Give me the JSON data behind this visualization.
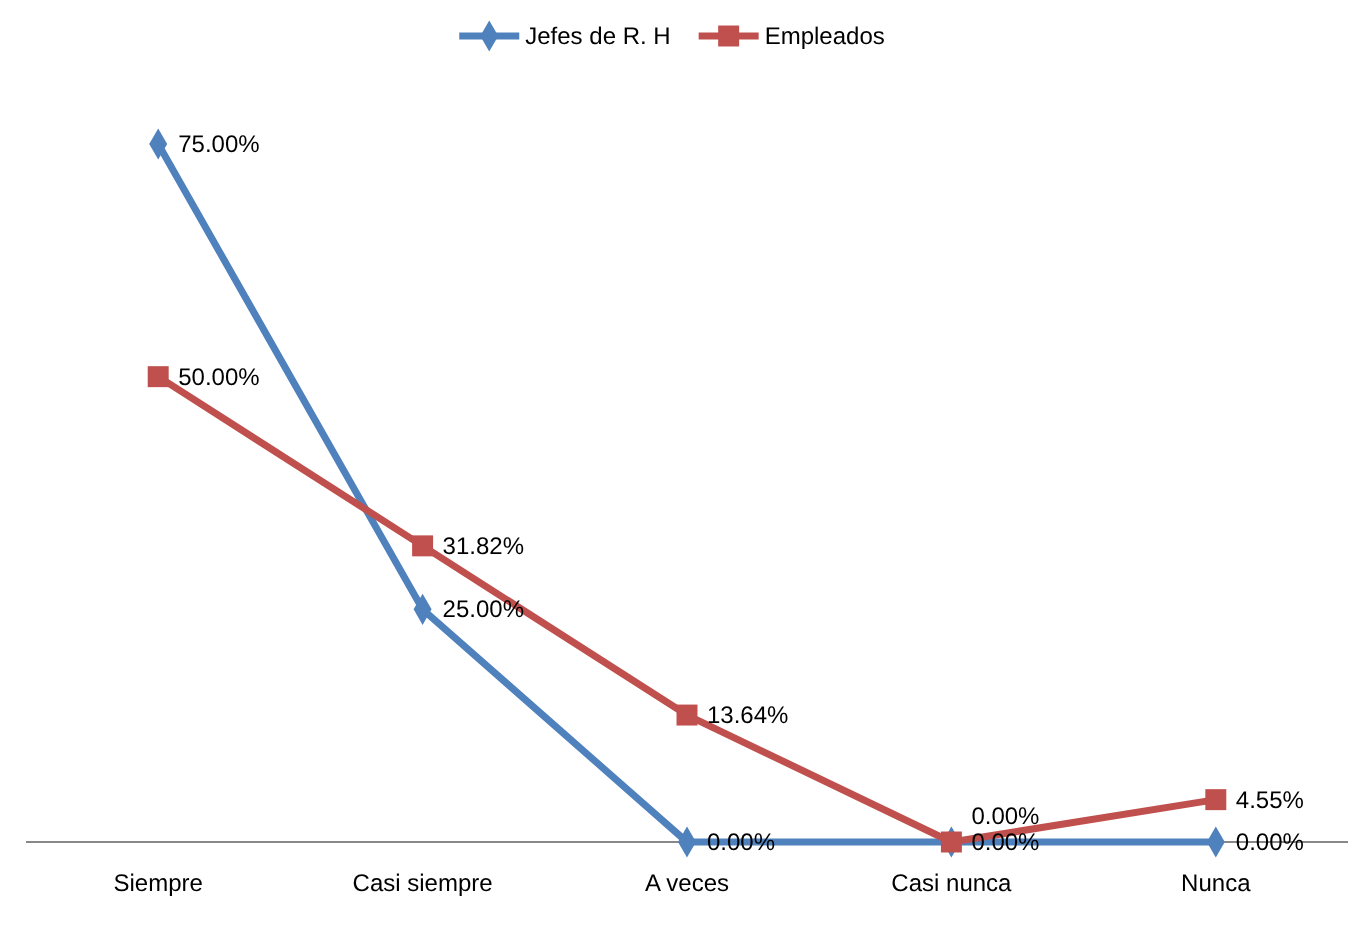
{
  "chart_data": {
    "type": "line",
    "categories": [
      "Siempre",
      "Casi siempre",
      "A veces",
      "Casi nunca",
      "Nunca"
    ],
    "series": [
      {
        "name": "Jefes de R. H",
        "color": "#4f81bd",
        "marker": "diamond",
        "values": [
          75,
          25,
          0,
          0,
          0
        ],
        "value_labels": [
          "75.00%",
          "25.00%",
          "0.00%",
          "0.00%",
          "0.00%"
        ]
      },
      {
        "name": "Empleados",
        "color": "#c0504d",
        "marker": "square",
        "values": [
          50,
          31.82,
          13.64,
          0,
          4.55
        ],
        "value_labels": [
          "50.00%",
          "31.82%",
          "13.64%",
          "0.00%",
          "4.55%"
        ]
      }
    ],
    "legend": "top",
    "grid": false
  }
}
